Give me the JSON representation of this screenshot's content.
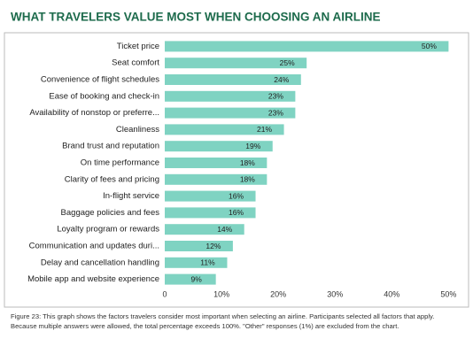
{
  "chart_data": {
    "type": "bar",
    "orientation": "horizontal",
    "title": "WHAT TRAVELERS VALUE MOST WHEN CHOOSING AN AIRLINE",
    "caption": "Figure 23: This graph shows the factors travelers consider most important when selecting an airline. Participants selected all factors that apply. Because multiple answers were allowed, the total percentage exceeds 100%. \"Other\" responses (1%) are excluded from the chart.",
    "categories": [
      "Ticket price",
      "Seat comfort",
      "Convenience of flight schedules",
      "Ease of booking and check-in",
      "Availability of nonstop or preferre...",
      "Cleanliness",
      "Brand trust and reputation",
      "On time performance",
      "Clarity of fees and pricing",
      "In-flight service",
      "Baggage policies and fees",
      "Loyalty program or rewards",
      "Communication and updates duri...",
      "Delay and cancellation handling",
      "Mobile app and website experience"
    ],
    "values": [
      50,
      25,
      24,
      23,
      23,
      21,
      19,
      18,
      18,
      16,
      16,
      14,
      12,
      11,
      9
    ],
    "value_labels": [
      "50%",
      "25%",
      "24%",
      "23%",
      "23%",
      "21%",
      "19%",
      "18%",
      "18%",
      "16%",
      "16%",
      "14%",
      "12%",
      "11%",
      "9%"
    ],
    "color": "#7fd3c2",
    "title_color": "#1d6b4c",
    "xlim": [
      0,
      51.5
    ],
    "xticks": [
      0,
      {
        "value": 10,
        "label": "10%"
      },
      {
        "value": 20,
        "label": "20%"
      },
      {
        "value": 30,
        "label": "30%"
      },
      {
        "value": 40,
        "label": "40%"
      },
      {
        "value": 50,
        "label": "50%"
      }
    ],
    "grid": false
  }
}
